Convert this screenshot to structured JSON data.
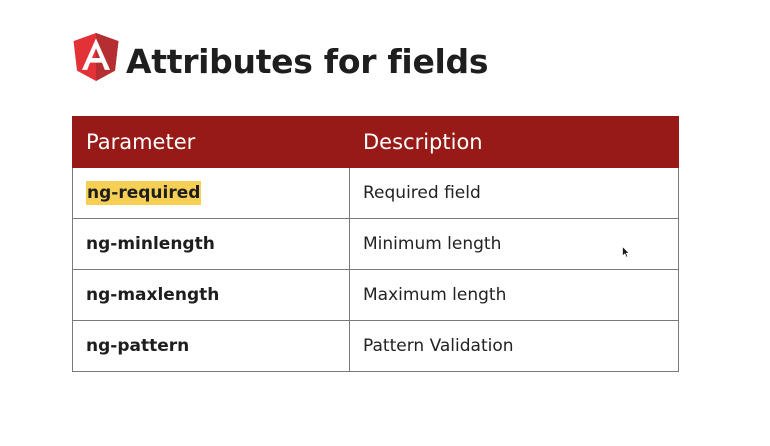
{
  "slide": {
    "title": "Attributes for fields",
    "logo_icon": "angular-logo-icon",
    "colors": {
      "header_bg": "#981a17",
      "highlight": "#f6cf55",
      "logo_dark": "#b52e31",
      "logo_light": "#e23237"
    }
  },
  "table": {
    "headers": {
      "parameter": "Parameter",
      "description": "Description"
    },
    "rows": [
      {
        "parameter": "ng-required",
        "description": "Required field",
        "highlighted": true
      },
      {
        "parameter": "ng-minlength",
        "description": "Minimum length",
        "highlighted": false
      },
      {
        "parameter": "ng-maxlength",
        "description": "Maximum length",
        "highlighted": false
      },
      {
        "parameter": "ng-pattern",
        "description": "Pattern Validation",
        "highlighted": false
      }
    ]
  },
  "pointer": {
    "icon": "mouse-pointer-icon"
  }
}
